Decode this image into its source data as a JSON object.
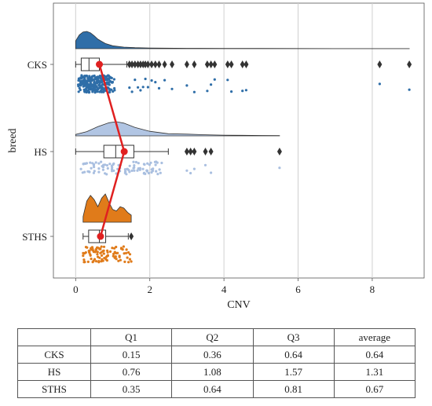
{
  "chart_data": {
    "type": "raincloud",
    "xlabel": "CNV",
    "ylabel": "breed",
    "xlim": [
      -0.6,
      9.4
    ],
    "xticks": [
      0,
      2,
      4,
      6,
      8
    ],
    "grid": "vertical",
    "categories": [
      "CKS",
      "HS",
      "STHS"
    ],
    "colors": {
      "CKS": "#2f6ea8",
      "HS": "#a9bfe0",
      "STHS": "#e07b1a"
    },
    "box": {
      "CKS": {
        "whisker_low": 0.0,
        "q1": 0.15,
        "median": 0.36,
        "q3": 0.64,
        "whisker_high": 1.38
      },
      "HS": {
        "whisker_low": 0.0,
        "q1": 0.76,
        "median": 1.08,
        "q3": 1.57,
        "whisker_high": 2.5
      },
      "STHS": {
        "whisker_low": 0.2,
        "q1": 0.35,
        "median": 0.64,
        "q3": 0.81,
        "whisker_high": 1.42
      }
    },
    "outliers": {
      "CKS": [
        1.45,
        1.52,
        1.6,
        1.68,
        1.75,
        1.82,
        1.88,
        1.95,
        2.05,
        2.15,
        2.25,
        2.4,
        2.6,
        3.0,
        3.2,
        3.55,
        3.65,
        3.75,
        4.1,
        4.2,
        4.5,
        4.6,
        8.2,
        9.0
      ],
      "HS": [
        3.0,
        3.1,
        3.2,
        3.5,
        3.65,
        5.5
      ],
      "STHS": [
        1.5
      ]
    },
    "density": {
      "CKS": {
        "x": [
          0,
          0.1,
          0.2,
          0.3,
          0.4,
          0.5,
          0.6,
          0.8,
          1.0,
          1.3,
          1.6,
          2,
          3,
          4,
          5,
          6,
          7,
          8,
          9
        ],
        "y": [
          0.45,
          0.8,
          0.97,
          1.0,
          0.92,
          0.75,
          0.55,
          0.3,
          0.17,
          0.09,
          0.06,
          0.04,
          0.025,
          0.018,
          0.012,
          0.008,
          0.006,
          0.005,
          0.004
        ]
      },
      "HS": {
        "x": [
          0,
          0.3,
          0.6,
          0.9,
          1.1,
          1.3,
          1.6,
          2.0,
          2.5,
          3.0,
          3.5,
          4,
          4.5,
          5,
          5.5
        ],
        "y": [
          0.1,
          0.3,
          0.65,
          0.93,
          1.0,
          0.9,
          0.6,
          0.32,
          0.15,
          0.12,
          0.08,
          0.05,
          0.04,
          0.03,
          0.02
        ]
      },
      "STHS": {
        "x": [
          0.2,
          0.3,
          0.4,
          0.5,
          0.6,
          0.7,
          0.8,
          0.9,
          1.0,
          1.1,
          1.2,
          1.3,
          1.4,
          1.5
        ],
        "y": [
          0.2,
          0.75,
          0.95,
          0.8,
          0.55,
          0.85,
          1.0,
          0.7,
          0.45,
          0.4,
          0.55,
          0.5,
          0.35,
          0.25
        ]
      }
    },
    "mean_line": {
      "CKS": 0.64,
      "HS": 1.31,
      "STHS": 0.67
    },
    "mean_line_color": "#e02020"
  },
  "table": {
    "headers": [
      "",
      "Q1",
      "Q2",
      "Q3",
      "average"
    ],
    "rows": [
      [
        "CKS",
        "0.15",
        "0.36",
        "0.64",
        "0.64"
      ],
      [
        "HS",
        "0.76",
        "1.08",
        "1.57",
        "1.31"
      ],
      [
        "STHS",
        "0.35",
        "0.64",
        "0.81",
        "0.67"
      ]
    ]
  }
}
